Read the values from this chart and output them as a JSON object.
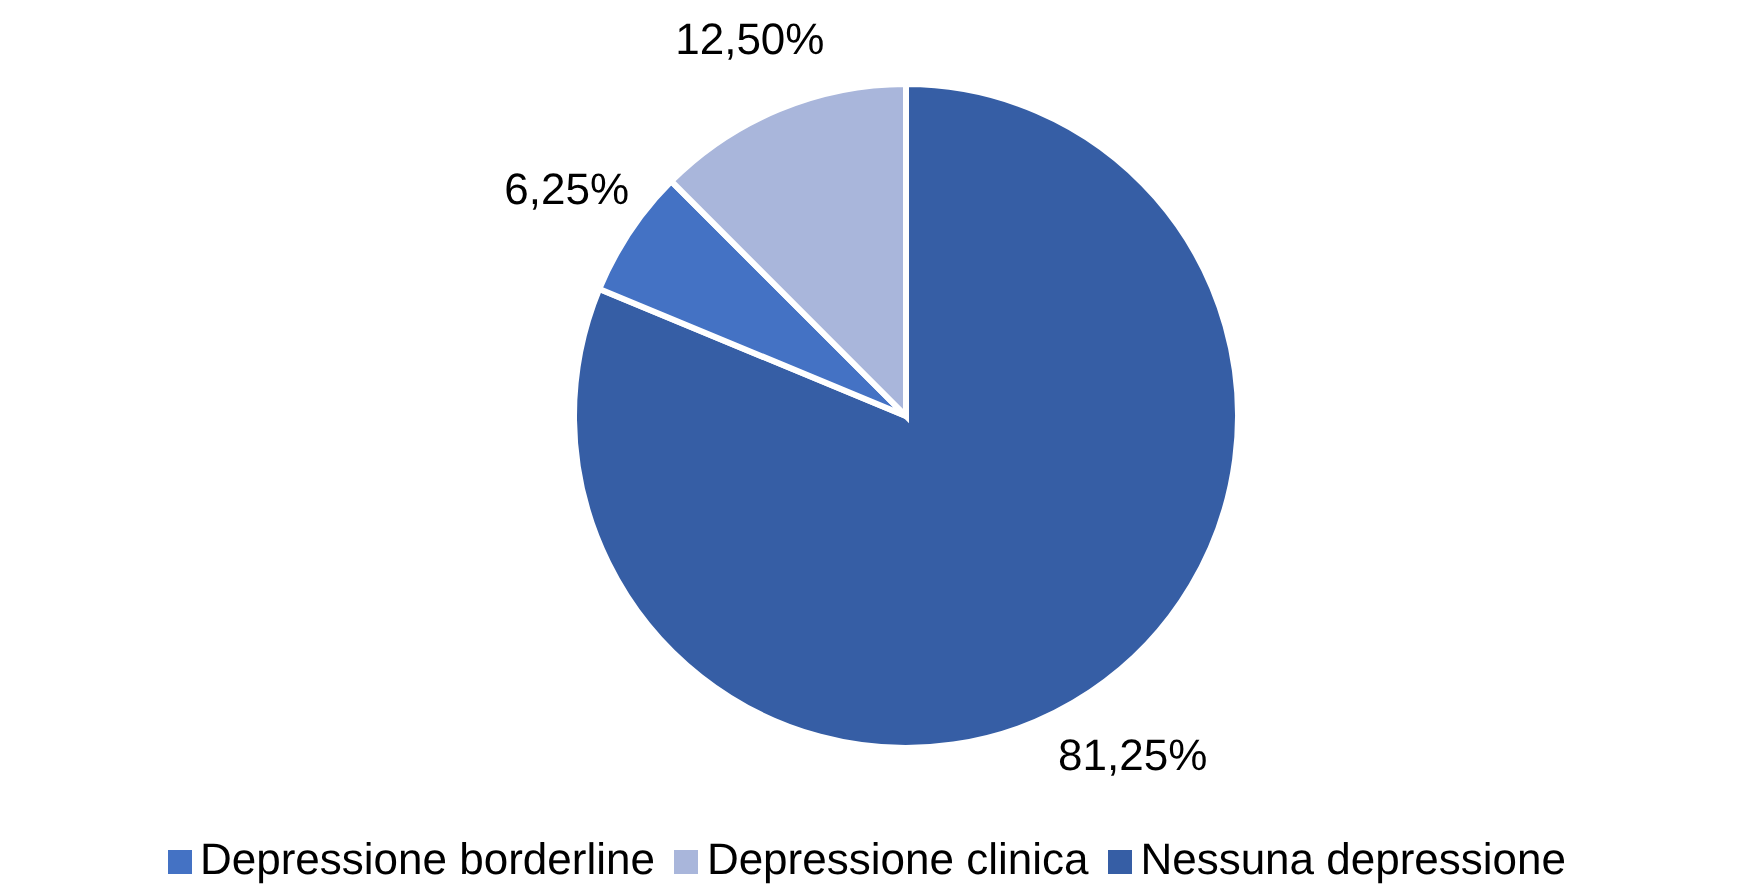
{
  "chart_data": {
    "type": "pie",
    "categories": [
      "Nessuna depressione",
      "Depressione borderline",
      "Depressione clinica"
    ],
    "values": [
      81.25,
      6.25,
      12.5
    ],
    "colors": [
      "#365ea5",
      "#4472c4",
      "#a9b6db"
    ],
    "value_labels": [
      "81,25%",
      "6,25%",
      "12,50%"
    ],
    "legend": "bottom"
  }
}
